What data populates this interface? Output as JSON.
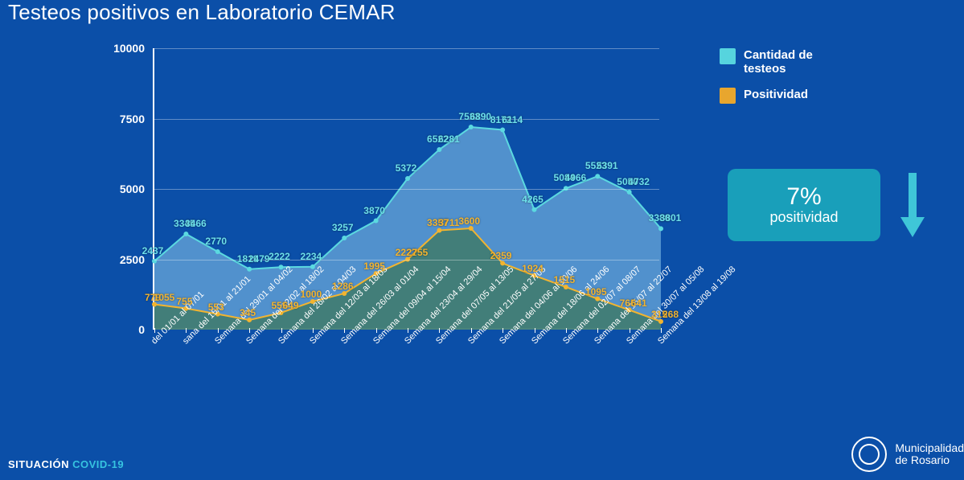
{
  "title": "Testeos positivos en Laboratorio CEMAR",
  "background_color": "#0b4fa8",
  "chart": {
    "type": "area",
    "ylim": [
      0,
      10000
    ],
    "ytick_step": 2500,
    "yticks": [
      0,
      2500,
      5000,
      7500,
      10000
    ],
    "grid_color": "rgba(255,255,255,0.35)",
    "axis_color": "#ffffff",
    "label_fontsize": 11,
    "ylabel_fontsize": 14,
    "datalabel_fontsize": 12,
    "categories": [
      "del 01/01 al 07/01",
      "sana del 15/01 al 21/01",
      "Semana del 29/01 al 04/02",
      "Semana del 12/02 al 18/02",
      "Semana del 26/02 al 04/03",
      "Semana del 12/03 al 18/03",
      "Semana del 26/03 al 01/04",
      "Semana del 09/04 al 15/04",
      "Semana del 23/04 al 29/04",
      "Semana del 07/05 al 13/05",
      "Semana del 21/05 al 27/05",
      "Semana del 04/06 al 10/06",
      "Semana del 18/06 al 24/06",
      "Semana del 02/07 al 08/07",
      "Semana del 15/07 al 22/07",
      "Semana del 30/07 al 05/08",
      "Semana del 13/08 al 19/08"
    ],
    "series": [
      {
        "name": "Cantidad de testeos",
        "color_line": "#5bd9e0",
        "color_fill": "#6aa7da",
        "fill_opacity": 0.75,
        "label_color": "#6de0ea",
        "values_label_pairs": [
          [
            2437,
            null
          ],
          [
            3345,
            3466
          ],
          [
            2770,
            null
          ],
          [
            1819,
            2479
          ],
          [
            2222,
            null
          ],
          [
            2234,
            null
          ],
          [
            3257,
            null
          ],
          [
            3870,
            null
          ],
          [
            5372,
            null
          ],
          [
            6522,
            6281
          ],
          [
            7533,
            6890
          ],
          [
            8172,
            6114
          ],
          [
            4265,
            null
          ],
          [
            5084,
            4966
          ],
          [
            5523,
            5391
          ],
          [
            5050,
            4732
          ],
          [
            3380,
            3801
          ]
        ],
        "values": [
          2437,
          3400,
          2770,
          2150,
          2222,
          2234,
          3257,
          3870,
          5372,
          6400,
          7200,
          7100,
          4265,
          5020,
          5450,
          4890,
          3590
        ]
      },
      {
        "name": "Positividad",
        "color_line": "#f2b430",
        "color_fill": "#3f7a6a",
        "fill_opacity": 0.85,
        "label_color": "#f2b430",
        "values_label_pairs": [
          [
            779,
            1055
          ],
          [
            755,
            null
          ],
          [
            553,
            null
          ],
          [
            345,
            null
          ],
          [
            555,
            649
          ],
          [
            1000,
            null
          ],
          [
            1286,
            null
          ],
          [
            1995,
            null
          ],
          [
            2222,
            2755
          ],
          [
            3357,
            3711
          ],
          [
            3600,
            null
          ],
          [
            2359,
            null
          ],
          [
            1924,
            null
          ],
          [
            1515,
            null
          ],
          [
            1095,
            null
          ],
          [
            765,
            641
          ],
          [
            315,
            268
          ]
        ],
        "values": [
          900,
          755,
          553,
          345,
          600,
          1000,
          1286,
          1995,
          2500,
          3530,
          3600,
          2359,
          1924,
          1515,
          1095,
          700,
          290
        ]
      }
    ]
  },
  "legend": {
    "items": [
      {
        "label": "Cantidad de testeos",
        "color": "#56d4de"
      },
      {
        "label": "Positividad",
        "color": "#e8a62e"
      }
    ]
  },
  "stat": {
    "value": "7%",
    "label": "positividad",
    "box_color": "#199fba",
    "arrow_color": "#3fc6d8",
    "arrow_direction": "down"
  },
  "footer": {
    "left_a": "SITUACIÓN ",
    "left_b": "COVID-19",
    "right_a": "Municipalidad",
    "right_b": "de Rosario"
  }
}
